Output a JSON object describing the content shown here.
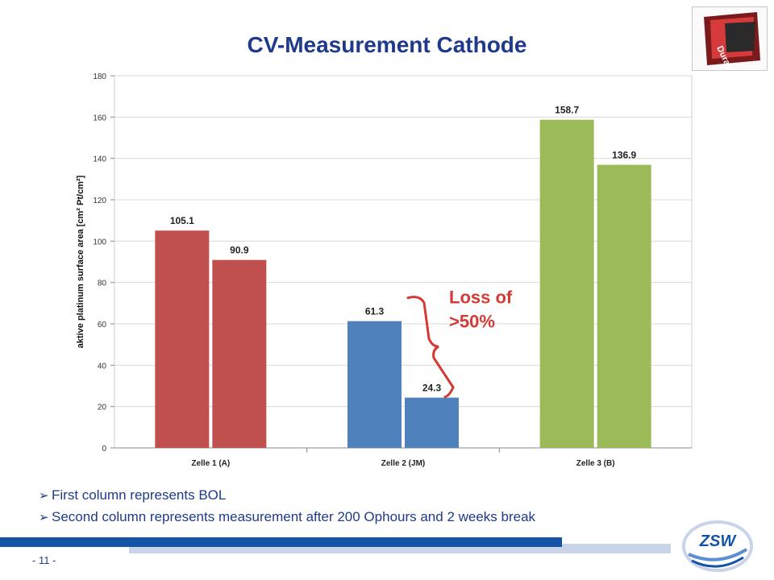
{
  "slide": {
    "title": "CV-Measurement Cathode",
    "page_number": "- 11 -",
    "bullets": [
      "First column represents BOL",
      "Second column represents measurement after 200 Ophours and 2 weeks break"
    ],
    "logo_text": "ZSW",
    "badge_text": "Durability",
    "colors": {
      "title": "#1f3a8a",
      "footer_dark": "#1553a7",
      "footer_light": "#c9d4e8",
      "annotation": "#d43a33"
    }
  },
  "chart_data": {
    "type": "bar",
    "title": "",
    "ylabel": "aktive platinum surface area [cm² Pt/cm²]",
    "xlabel": "",
    "ylim": [
      0,
      180
    ],
    "yticks": [
      0,
      20,
      40,
      60,
      80,
      100,
      120,
      140,
      160,
      180
    ],
    "grid": true,
    "categories": [
      "Zelle 1 (A)",
      "Zelle 2 (JM)",
      "Zelle 3 (B)"
    ],
    "bar_colors": [
      "#c0504d",
      "#4f81bd",
      "#9bbb59"
    ],
    "series": [
      {
        "values": [
          105.1,
          61.3,
          158.7
        ]
      },
      {
        "values": [
          90.9,
          24.3,
          136.9
        ]
      }
    ],
    "annotation": {
      "lines": [
        "Loss of",
        ">50%"
      ],
      "color": "#d43a33"
    }
  }
}
